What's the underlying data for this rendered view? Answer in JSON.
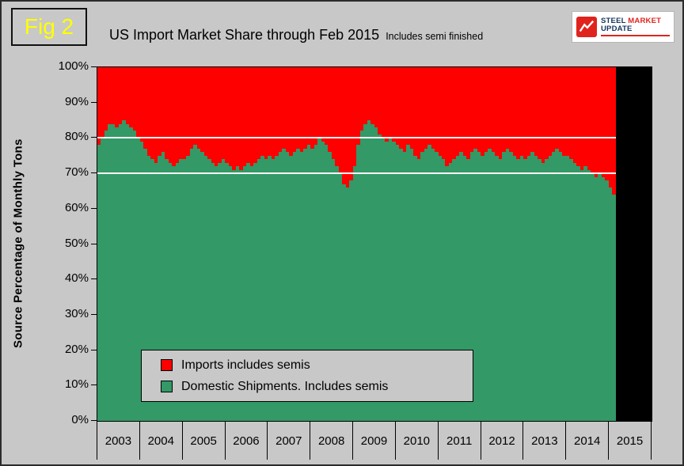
{
  "figure_label": "Fig 2",
  "title": "US Import Market Share through Feb 2015",
  "subtitle": "Includes semi finished",
  "logo": {
    "word1": "STEEL",
    "word2": "MARKET",
    "word3": "UPDATE"
  },
  "y_axis_title": "Source Percentage of Monthly Tons",
  "legend": [
    {
      "label": "Imports includes semis",
      "color": "#ff0000"
    },
    {
      "label": "Domestic Shipments. Includes semis",
      "color": "#339966"
    }
  ],
  "colors": {
    "imports": "#ff0000",
    "domestic": "#339966",
    "no_data": "#000000",
    "background": "#c8c8c8",
    "figure_label_text": "#ffff00"
  },
  "chart_data": {
    "type": "area",
    "stacking": "100% stacked by month",
    "title": "US Import Market Share through Feb 2015 Includes semi finished",
    "xlabel": "",
    "ylabel": "Source Percentage of Monthly Tons",
    "ylim": [
      0,
      100
    ],
    "yticks": [
      "100%",
      "90%",
      "80%",
      "70%",
      "60%",
      "50%",
      "40%",
      "30%",
      "20%",
      "10%",
      "0%"
    ],
    "gridlines_pct": [
      80,
      70
    ],
    "x_years": [
      "2003",
      "2004",
      "2005",
      "2006",
      "2007",
      "2008",
      "2009",
      "2010",
      "2011",
      "2012",
      "2013",
      "2014",
      "2015"
    ],
    "months_start": "Jan 2003",
    "months_end": "Feb 2015",
    "filler_months": 10,
    "filler_color": "#000000",
    "series": [
      {
        "name": "Imports includes semis",
        "color": "#ff0000",
        "derivation": "100 minus domestic share for each month"
      },
      {
        "name": "Domestic Shipments. Includes semis",
        "color": "#339966",
        "values": [
          78,
          80,
          82,
          84,
          84,
          83,
          84,
          85,
          84,
          83,
          82,
          80,
          79,
          77,
          75,
          74,
          73,
          75,
          76,
          74,
          73,
          72,
          73,
          74,
          74,
          75,
          77,
          78,
          77,
          76,
          75,
          74,
          73,
          72,
          73,
          74,
          73,
          72,
          71,
          72,
          71,
          72,
          73,
          72,
          73,
          74,
          75,
          74,
          75,
          74,
          75,
          76,
          77,
          76,
          75,
          76,
          77,
          76,
          77,
          78,
          77,
          78,
          80,
          79,
          78,
          76,
          74,
          72,
          70,
          67,
          66,
          68,
          72,
          78,
          82,
          84,
          85,
          84,
          83,
          81,
          80,
          79,
          80,
          79,
          78,
          77,
          76,
          78,
          77,
          75,
          74,
          76,
          77,
          78,
          77,
          76,
          75,
          74,
          72,
          73,
          74,
          75,
          76,
          75,
          74,
          76,
          77,
          76,
          75,
          76,
          77,
          76,
          75,
          74,
          76,
          77,
          76,
          75,
          74,
          75,
          74,
          75,
          76,
          75,
          74,
          73,
          74,
          75,
          76,
          77,
          76,
          75,
          75,
          74,
          73,
          72,
          71,
          72,
          71,
          70,
          69,
          70,
          69,
          68,
          66,
          64
        ]
      }
    ]
  }
}
